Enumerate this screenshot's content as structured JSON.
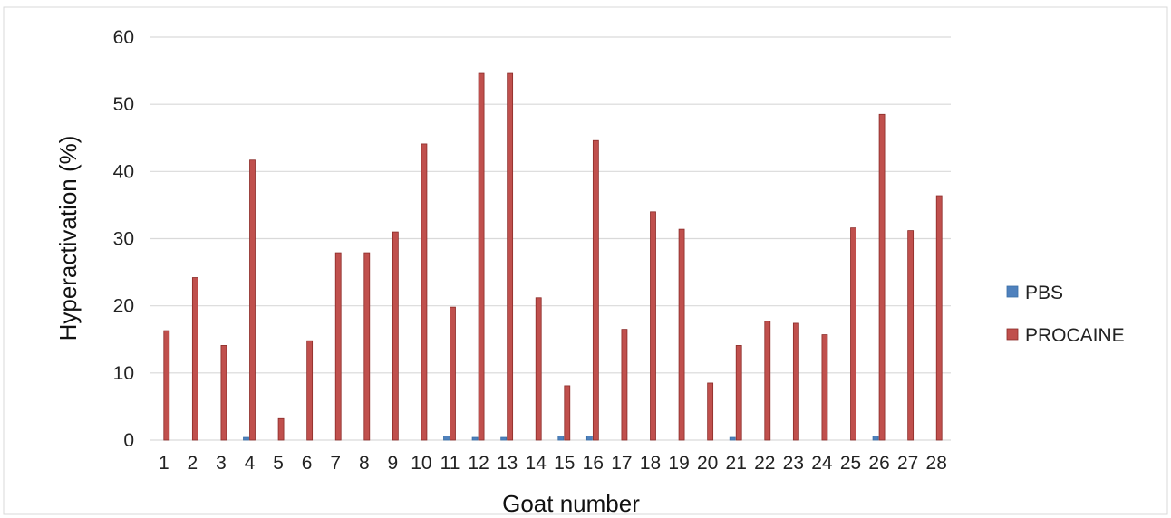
{
  "chart_data": {
    "type": "bar",
    "title": "",
    "xlabel": "Goat number",
    "ylabel": "Hyperactivation (%)",
    "ylim": [
      0,
      60
    ],
    "yticks": [
      0,
      10,
      20,
      30,
      40,
      50,
      60
    ],
    "grid": true,
    "legend_position": "right",
    "categories": [
      "1",
      "2",
      "3",
      "4",
      "5",
      "6",
      "7",
      "8",
      "9",
      "10",
      "11",
      "12",
      "13",
      "14",
      "15",
      "16",
      "17",
      "18",
      "19",
      "20",
      "21",
      "22",
      "23",
      "24",
      "25",
      "26",
      "27",
      "28"
    ],
    "series": [
      {
        "name": "PBS",
        "color": "#4f81bd",
        "values": [
          0,
          0,
          0,
          0.4,
          0,
          0,
          0,
          0,
          0,
          0,
          0.6,
          0.4,
          0.4,
          0,
          0.6,
          0.6,
          0,
          0,
          0,
          0,
          0.4,
          0,
          0,
          0,
          0,
          0.6,
          0,
          0
        ]
      },
      {
        "name": "PROCAINE",
        "color": "#c0504d",
        "values": [
          16.3,
          24.2,
          14.1,
          41.7,
          3.2,
          14.8,
          27.9,
          27.9,
          31.0,
          44.1,
          19.8,
          54.6,
          54.6,
          21.2,
          8.1,
          44.6,
          16.5,
          34.0,
          31.4,
          8.5,
          14.1,
          17.7,
          17.4,
          15.7,
          31.6,
          48.5,
          31.2,
          36.4
        ]
      }
    ]
  }
}
